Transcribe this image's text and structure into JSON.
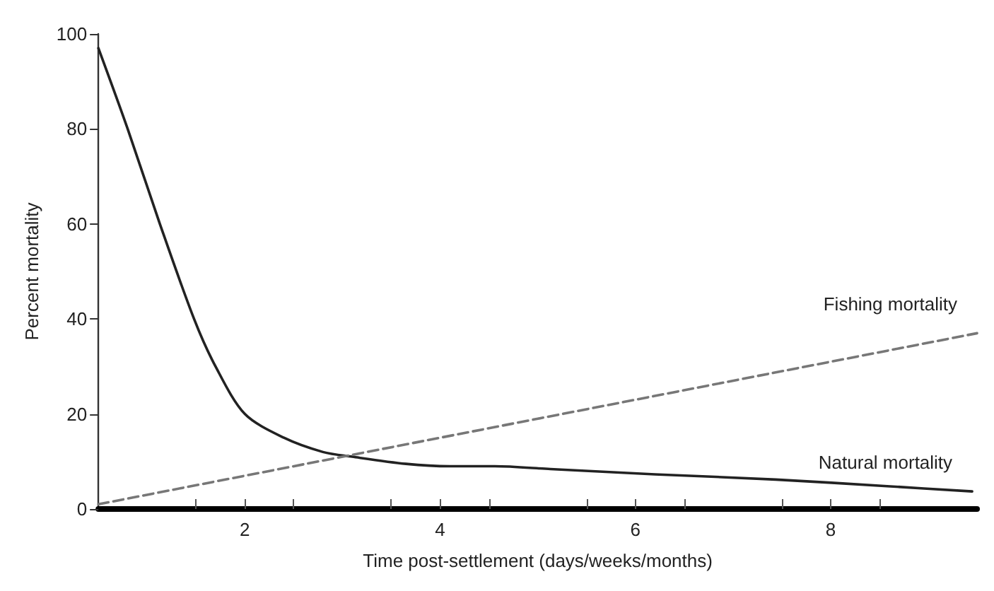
{
  "chart_data": {
    "type": "line",
    "xlabel": "Time post-settlement (days/weeks/months)",
    "ylabel": "Percent mortality",
    "xlim": [
      0.5,
      9.5
    ],
    "ylim": [
      0,
      100
    ],
    "xticks": [
      {
        "value": 1.5,
        "label": null
      },
      2,
      {
        "value": 2.5,
        "label": null
      },
      {
        "value": 3.5,
        "label": null
      },
      4,
      {
        "value": 4.5,
        "label": null
      },
      {
        "value": 5.5,
        "label": null
      },
      6,
      {
        "value": 6.5,
        "label": null
      },
      {
        "value": 7.5,
        "label": null
      },
      8,
      {
        "value": 8.5,
        "label": null
      }
    ],
    "yticks": [
      0,
      20,
      40,
      60,
      80,
      100
    ],
    "grid": false,
    "legend": false,
    "marker": "none",
    "series": [
      {
        "name": "Natural mortality",
        "color": "#222222",
        "line_style": "solid",
        "x": [
          0.5,
          0.8,
          1.13,
          1.48,
          1.7,
          2.0,
          2.4,
          2.8,
          3.1,
          3.65,
          4.1,
          4.56,
          5.13,
          6.2,
          7.44,
          8.58,
          9.45
        ],
        "values": [
          97,
          80,
          60,
          40,
          30,
          20,
          15,
          12,
          11,
          9.5,
          9,
          9,
          8.4,
          7.3,
          6.2,
          4.8,
          3.7
        ]
      },
      {
        "name": "Fishing mortality",
        "color": "#777777",
        "line_style": "dashed",
        "x": [
          0.5,
          9.5
        ],
        "values": [
          1,
          37
        ]
      }
    ]
  }
}
